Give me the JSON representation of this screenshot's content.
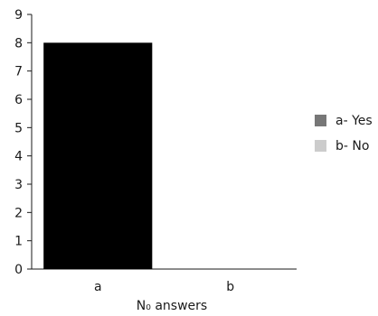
{
  "chart_data": {
    "type": "bar",
    "categories": [
      "a",
      "b"
    ],
    "values": [
      8,
      0
    ],
    "ylim": [
      0,
      9
    ],
    "yticks": [
      0,
      1,
      2,
      3,
      4,
      5,
      6,
      7,
      8,
      9
    ],
    "xlabel": "N₀ answers",
    "title": "",
    "ylabel": "",
    "grid": false,
    "legend_position": "right",
    "legend": [
      {
        "label": "a- Yes",
        "color": "#777777"
      },
      {
        "label": "b- No",
        "color": "#cccccc"
      }
    ],
    "bar_color": "#000000"
  }
}
